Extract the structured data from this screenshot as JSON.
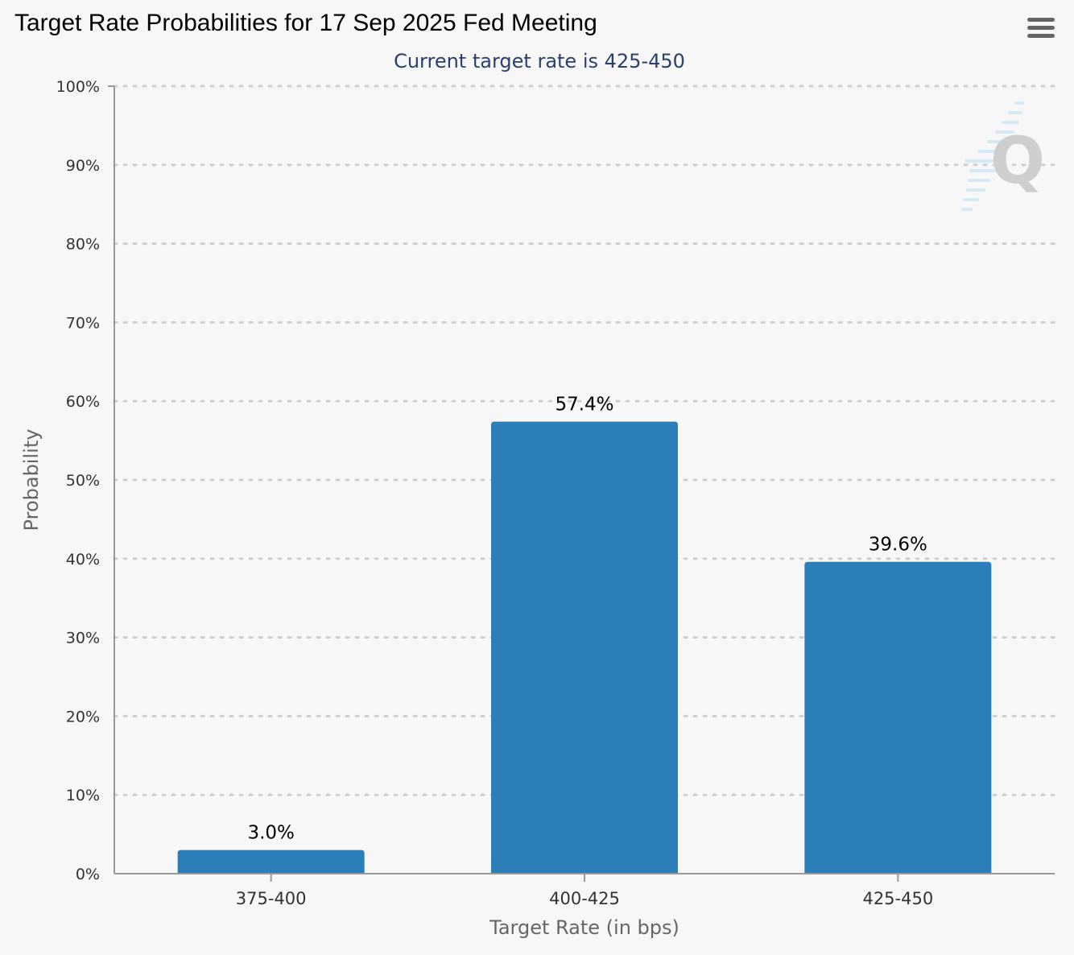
{
  "header": {
    "title": "Target Rate Probabilities for 17 Sep 2025 Fed Meeting",
    "menu_icon": "hamburger-menu-icon"
  },
  "chart_data": {
    "type": "bar",
    "title": "Target Rate Probabilities for 17 Sep 2025 Fed Meeting",
    "subtitle": "Current target rate is 425-450",
    "categories": [
      "375-400",
      "400-425",
      "425-450"
    ],
    "values": [
      3.0,
      57.4,
      39.6
    ],
    "data_labels": [
      "3.0%",
      "57.4%",
      "39.6%"
    ],
    "xlabel": "Target Rate (in bps)",
    "ylabel": "Probability",
    "ylim": [
      0,
      100
    ],
    "yticks": [
      "0%",
      "10%",
      "20%",
      "30%",
      "40%",
      "50%",
      "60%",
      "70%",
      "80%",
      "90%",
      "100%"
    ],
    "grid": true,
    "bar_color": "#2a7fb8",
    "watermark_icon": "cme-q-logo-icon"
  }
}
